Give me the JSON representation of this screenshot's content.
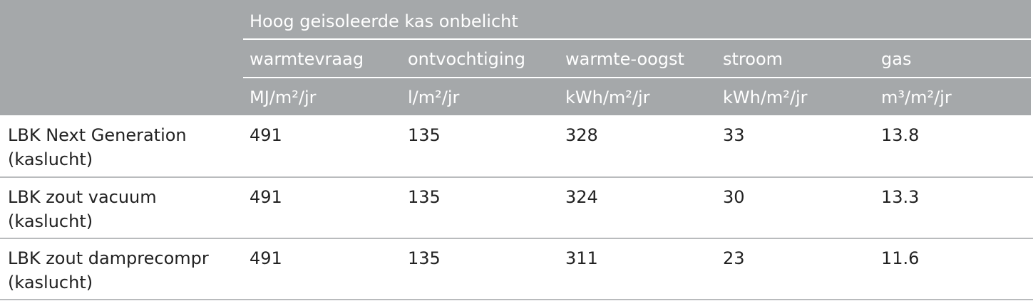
{
  "table": {
    "group_header": "Hoog geisoleerde kas onbelicht",
    "columns": [
      {
        "name": "warmtevraag",
        "unit": "MJ/m²/jr"
      },
      {
        "name": "ontvochtiging",
        "unit": "l/m²/jr"
      },
      {
        "name": "warmte-oogst",
        "unit": "kWh/m²/jr"
      },
      {
        "name": "stroom",
        "unit": "kWh/m²/jr"
      },
      {
        "name": "gas",
        "unit": "m³/m²/jr"
      }
    ],
    "rows": [
      {
        "label_line1": "LBK Next Generation",
        "label_line2": "(kaslucht)",
        "values": [
          "491",
          "135",
          "328",
          "33",
          "13.8"
        ]
      },
      {
        "label_line1": "LBK zout vacuum",
        "label_line2": "(kaslucht)",
        "values": [
          "491",
          "135",
          "324",
          "30",
          "13.3"
        ]
      },
      {
        "label_line1": "LBK zout damprecompr",
        "label_line2": "(kaslucht)",
        "values": [
          "491",
          "135",
          "311",
          "23",
          "11.6"
        ]
      }
    ]
  }
}
